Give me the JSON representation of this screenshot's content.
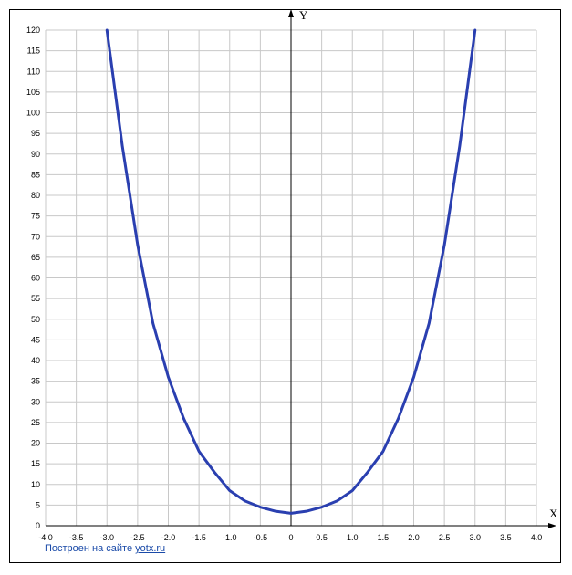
{
  "chart_data": {
    "type": "line",
    "xlabel": "X",
    "ylabel": "Y",
    "xlim": [
      -4.0,
      4.0
    ],
    "ylim": [
      0,
      120
    ],
    "x_ticks": [
      -4.0,
      -3.5,
      -3.0,
      -2.5,
      -2.0,
      -1.5,
      -1.0,
      -0.5,
      0,
      0.5,
      1.0,
      1.5,
      2.0,
      2.5,
      3.0,
      3.5,
      4.0
    ],
    "x_tick_labels": [
      "-4.0",
      "-3.5",
      "-3.0",
      "-2.5",
      "-2.0",
      "-1.5",
      "-1.0",
      "-0.5",
      "0",
      "0.5",
      "1.0",
      "1.5",
      "2.0",
      "2.5",
      "3.0",
      "3.5",
      "4.0"
    ],
    "y_ticks": [
      0,
      5,
      10,
      15,
      20,
      25,
      30,
      35,
      40,
      45,
      50,
      55,
      60,
      65,
      70,
      75,
      80,
      85,
      90,
      95,
      100,
      105,
      110,
      115,
      120
    ],
    "grid": true,
    "colors": {
      "curve": "#2a3fb0",
      "grid": "#c8c8c8",
      "axis": "#000000"
    },
    "series": [
      {
        "x": [
          -3.0,
          -2.75,
          -2.5,
          -2.25,
          -2.0,
          -1.75,
          -1.5,
          -1.25,
          -1.0,
          -0.75,
          -0.5,
          -0.25,
          0,
          0.25,
          0.5,
          0.75,
          1.0,
          1.25,
          1.5,
          1.75,
          2.0,
          2.25,
          2.5,
          2.75,
          3.0
        ],
        "y": [
          120,
          92,
          68,
          49,
          36,
          26,
          18,
          13,
          8.5,
          6,
          4.5,
          3.5,
          3,
          3.5,
          4.5,
          6,
          8.5,
          13,
          18,
          26,
          36,
          49,
          68,
          92,
          120
        ]
      }
    ]
  },
  "footer": {
    "text": "Построен на сайте",
    "link_text": "yotx.ru"
  }
}
